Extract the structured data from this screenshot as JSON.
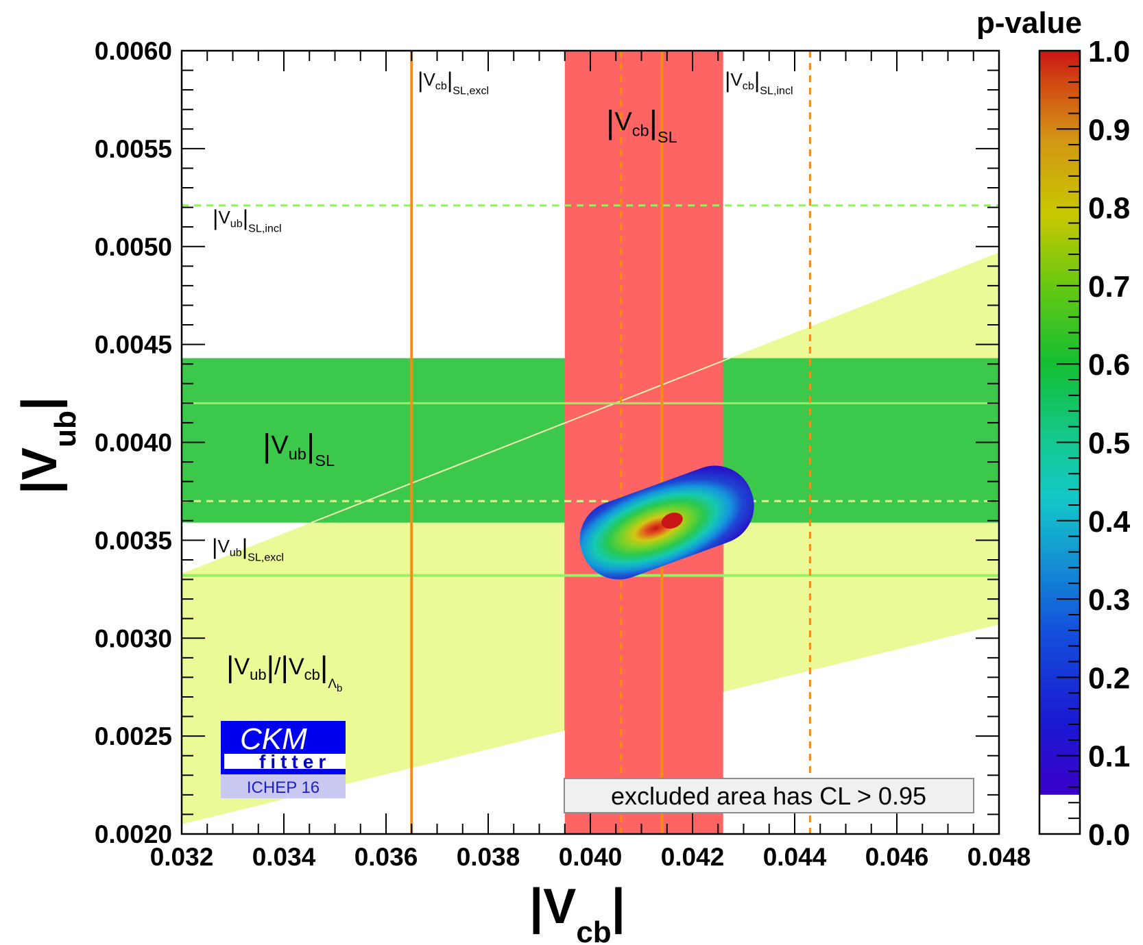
{
  "chart_data": {
    "type": "contour",
    "xlabel": {
      "main": "|V",
      "sub": "cb",
      "end": "|"
    },
    "ylabel": {
      "main": "|V",
      "sub": "ub",
      "end": "|"
    },
    "xlim": [
      0.032,
      0.048
    ],
    "ylim": [
      0.002,
      0.006
    ],
    "xticks": [
      "0.032",
      "0.034",
      "0.036",
      "0.038",
      "0.040",
      "0.042",
      "0.044",
      "0.046",
      "0.048"
    ],
    "yticks": [
      "0.0020",
      "0.0025",
      "0.0030",
      "0.0035",
      "0.0040",
      "0.0045",
      "0.0050",
      "0.0055",
      "0.0060"
    ],
    "colorbar": {
      "title": "p-value",
      "ticks": [
        "0.0",
        "0.1",
        "0.2",
        "0.3",
        "0.4",
        "0.5",
        "0.6",
        "0.7",
        "0.8",
        "0.9",
        "1.0"
      ],
      "range": [
        0.0,
        1.0
      ]
    },
    "constraints": {
      "vcb_sl_band": {
        "x": [
          0.0395,
          0.0426
        ],
        "color": "#ff6464",
        "label_main": "V",
        "label_sub": "cb",
        "label_suffix": "SL"
      },
      "vub_sl_band": {
        "y": [
          0.00359,
          0.00443
        ],
        "color": "#3cc84a",
        "label_main": "V",
        "label_sub": "ub",
        "label_suffix": "SL"
      },
      "ratio_band": {
        "label_a": "V",
        "label_a_sub": "ub",
        "label_b": "V",
        "label_b_sub": "cb",
        "label_suffix": "Λ",
        "label_suffix_sub": "b",
        "upper": [
          [
            0.032,
            0.00333
          ],
          [
            0.048,
            0.00497
          ]
        ],
        "lower": [
          [
            0.032,
            0.00205
          ],
          [
            0.048,
            0.00307
          ]
        ],
        "color": "#ebfa96"
      },
      "vcb_excl": {
        "x": 0.0365,
        "label_main": "V",
        "label_sub": "cb",
        "label_suffix": "SL,excl"
      },
      "vcb_incl": {
        "x": [
          0.0406,
          0.0414,
          0.0443
        ],
        "label_main": "V",
        "label_sub": "cb",
        "label_suffix": "SL,incl"
      },
      "vub_excl": {
        "y": 0.00332,
        "label_main": "V",
        "label_sub": "ub",
        "label_suffix": "SL,excl"
      },
      "vub_incl": {
        "y": [
          0.0037,
          0.0042,
          0.00521
        ],
        "label_main": "V",
        "label_sub": "ub",
        "label_suffix": "SL,incl"
      }
    },
    "best_fit": {
      "x": 0.0416,
      "y": 0.0036
    },
    "note": "excluded area has CL > 0.95"
  },
  "logo": {
    "top": "CKM",
    "bottom": "fitter",
    "event": "ICHEP 16"
  }
}
